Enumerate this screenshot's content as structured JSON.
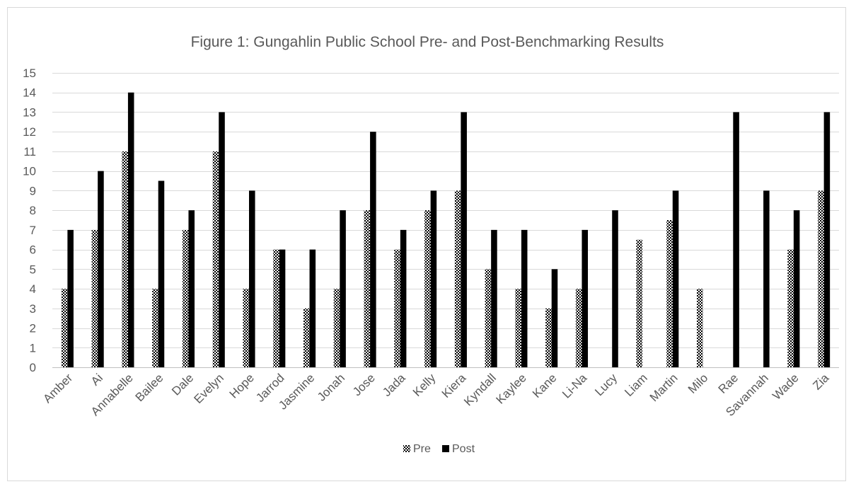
{
  "chart_data": {
    "type": "bar",
    "title": "Figure 1: Gungahlin Public School Pre- and Post-Benchmarking Results",
    "xlabel": "",
    "ylabel": "",
    "ylim": [
      0,
      15
    ],
    "ytick_step": 1,
    "grid": true,
    "legend_position": "bottom",
    "categories": [
      "Amber",
      "Ai",
      "Annabelle",
      "Bailee",
      "Dale",
      "Evelyn",
      "Hope",
      "Jarrod",
      "Jasmine",
      "Jonah",
      "Jose",
      "Jada",
      "Kelly",
      "Kiera",
      "Kyndall",
      "Kaylee",
      "Kane",
      "Li-Na",
      "Lucy",
      "Liam",
      "Martin",
      "Milo",
      "Rae",
      "Savannah",
      "Wade",
      "Zia"
    ],
    "series": [
      {
        "name": "Pre",
        "fill": "checkered",
        "values": [
          4,
          7,
          11,
          4,
          7,
          11,
          4,
          6,
          3,
          4,
          8,
          6,
          8,
          9,
          5,
          4,
          3,
          4,
          null,
          6.5,
          7.5,
          4,
          null,
          null,
          6,
          9
        ]
      },
      {
        "name": "Post",
        "fill": "solid",
        "values": [
          7,
          10,
          14,
          9.5,
          8,
          13,
          9,
          6,
          6,
          8,
          12,
          7,
          9,
          13,
          7,
          7,
          5,
          7,
          8,
          null,
          9,
          null,
          13,
          9,
          8,
          13
        ]
      }
    ]
  },
  "colors": {
    "post": "#000000",
    "pre_dark": "#000000",
    "pre_light": "#ffffff",
    "text": "#595959",
    "grid": "#d9d9d9"
  }
}
